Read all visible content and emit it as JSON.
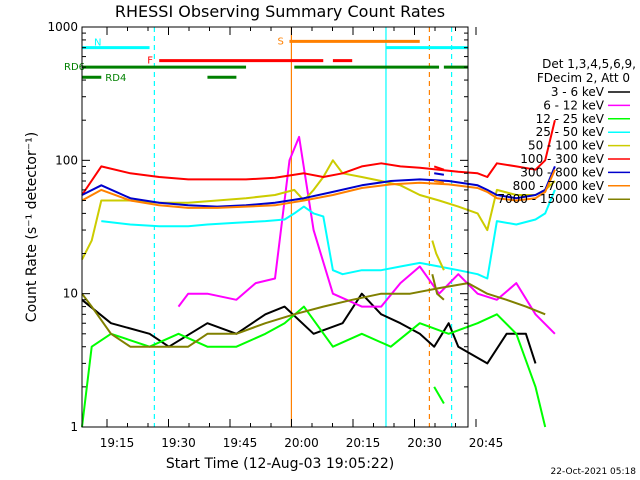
{
  "chart_data": {
    "type": "line",
    "title": "RHESSI Observing Summary Count Rates",
    "xlabel": "Start Time (12-Aug-03 19:05:22)",
    "ylabel": "Count Rate (s⁻¹ detector⁻¹)",
    "y_scale": "log",
    "ylim": [
      1,
      1000
    ],
    "xlim_minutes": [
      7,
      47
    ],
    "x_ticks": [
      "19:15",
      "19:30",
      "19:45",
      "20:00",
      "20:15",
      "20:30",
      "20:45"
    ],
    "y_ticks": [
      "1",
      "10",
      "100",
      "1000"
    ],
    "legend_header": [
      "Det 1,3,4,5,6,9,",
      "FDecim 2, Att 0"
    ],
    "legend_position": "right",
    "timestamp": "22-Oct-2021 05:18",
    "series": [
      {
        "name": "3 - 6 keV",
        "color": "#000000",
        "points": [
          [
            7,
            9
          ],
          [
            10,
            6
          ],
          [
            14,
            5
          ],
          [
            16,
            4
          ],
          [
            20,
            6
          ],
          [
            23,
            5
          ],
          [
            26,
            7
          ],
          [
            28,
            8
          ],
          [
            31,
            5
          ],
          [
            34,
            6
          ],
          [
            36,
            10
          ],
          [
            38,
            7
          ],
          [
            40,
            6
          ],
          [
            42,
            5
          ],
          [
            43.5,
            4
          ],
          [
            45,
            6
          ],
          [
            46,
            4
          ],
          [
            49,
            3
          ],
          [
            51,
            5
          ],
          [
            53,
            5
          ],
          [
            54,
            3
          ]
        ]
      },
      {
        "name": "6 - 12 keV",
        "color": "#ff00ff",
        "points": [
          [
            17,
            8
          ],
          [
            18,
            10
          ],
          [
            20,
            10
          ],
          [
            23,
            9
          ],
          [
            25,
            12
          ],
          [
            27,
            13
          ],
          [
            28.5,
            100
          ],
          [
            29.5,
            150
          ],
          [
            31,
            30
          ],
          [
            33,
            10
          ],
          [
            36,
            8
          ],
          [
            38,
            8
          ],
          [
            40,
            12
          ],
          [
            42,
            16
          ],
          [
            44,
            10
          ],
          [
            46,
            14
          ],
          [
            48,
            10
          ],
          [
            50,
            9
          ],
          [
            52,
            12
          ],
          [
            54,
            7
          ],
          [
            56,
            5
          ]
        ]
      },
      {
        "name": "12 - 25 keV",
        "color": "#00ff00",
        "points": [
          [
            7,
            1
          ],
          [
            8,
            4
          ],
          [
            10,
            5
          ],
          [
            14,
            4
          ],
          [
            17,
            5
          ],
          [
            20,
            4
          ],
          [
            23,
            4
          ],
          [
            26,
            5
          ],
          [
            28,
            6
          ],
          [
            30,
            8
          ],
          [
            33,
            4
          ],
          [
            36,
            5
          ],
          [
            39,
            4
          ],
          [
            42,
            6
          ],
          [
            45,
            5
          ],
          [
            48,
            6
          ],
          [
            50,
            7
          ],
          [
            52,
            5
          ],
          [
            54,
            2
          ],
          [
            55,
            1
          ]
        ]
      },
      {
        "name": "25 - 50 keV",
        "color": "#00ffff",
        "points": [
          [
            9,
            35
          ],
          [
            12,
            33
          ],
          [
            15,
            32
          ],
          [
            18,
            32
          ],
          [
            20,
            33
          ],
          [
            23,
            34
          ],
          [
            26,
            35
          ],
          [
            28,
            36
          ],
          [
            29,
            40
          ],
          [
            30,
            45
          ],
          [
            31,
            40
          ],
          [
            32,
            38
          ],
          [
            33,
            15
          ],
          [
            34,
            14
          ],
          [
            36,
            15
          ],
          [
            38,
            15
          ],
          [
            40,
            16
          ],
          [
            42,
            17
          ],
          [
            44,
            16
          ],
          [
            46,
            15
          ],
          [
            48,
            14
          ],
          [
            49,
            13
          ],
          [
            50,
            35
          ],
          [
            52,
            33
          ],
          [
            54,
            36
          ],
          [
            55,
            40
          ],
          [
            56,
            60
          ]
        ]
      },
      {
        "name": "50 - 100 keV",
        "color": "#cccc00",
        "points": [
          [
            7,
            18
          ],
          [
            8,
            25
          ],
          [
            9,
            50
          ],
          [
            12,
            50
          ],
          [
            15,
            48
          ],
          [
            18,
            48
          ],
          [
            21,
            50
          ],
          [
            24,
            52
          ],
          [
            27,
            55
          ],
          [
            29,
            60
          ],
          [
            30,
            50
          ],
          [
            31,
            60
          ],
          [
            32,
            75
          ],
          [
            33,
            100
          ],
          [
            34,
            80
          ],
          [
            36,
            75
          ],
          [
            38,
            70
          ],
          [
            40,
            65
          ],
          [
            42,
            55
          ],
          [
            44,
            50
          ],
          [
            46,
            45
          ],
          [
            48,
            40
          ],
          [
            49,
            30
          ],
          [
            50,
            60
          ],
          [
            52,
            55
          ],
          [
            54,
            55
          ],
          [
            55,
            60
          ],
          [
            56,
            70
          ]
        ]
      },
      {
        "name": "100 - 300 keV",
        "color": "#ff0000",
        "points": [
          [
            7,
            55
          ],
          [
            9,
            90
          ],
          [
            12,
            80
          ],
          [
            15,
            75
          ],
          [
            18,
            72
          ],
          [
            21,
            72
          ],
          [
            24,
            72
          ],
          [
            27,
            74
          ],
          [
            30,
            80
          ],
          [
            32,
            75
          ],
          [
            34,
            80
          ],
          [
            36,
            90
          ],
          [
            38,
            95
          ],
          [
            40,
            90
          ],
          [
            42,
            88
          ],
          [
            44,
            85
          ],
          [
            46,
            82
          ],
          [
            48,
            80
          ],
          [
            49,
            75
          ],
          [
            50,
            95
          ],
          [
            52,
            90
          ],
          [
            54,
            85
          ],
          [
            55,
            100
          ],
          [
            56,
            200
          ]
        ]
      },
      {
        "name": "300 - 800 keV",
        "color": "#0000cc",
        "points": [
          [
            7,
            55
          ],
          [
            9,
            65
          ],
          [
            12,
            52
          ],
          [
            15,
            48
          ],
          [
            18,
            46
          ],
          [
            21,
            45
          ],
          [
            24,
            46
          ],
          [
            27,
            48
          ],
          [
            30,
            52
          ],
          [
            33,
            58
          ],
          [
            36,
            65
          ],
          [
            39,
            70
          ],
          [
            42,
            72
          ],
          [
            45,
            70
          ],
          [
            48,
            65
          ],
          [
            49,
            60
          ],
          [
            50,
            55
          ],
          [
            52,
            52
          ],
          [
            54,
            55
          ],
          [
            55,
            60
          ],
          [
            56,
            90
          ]
        ]
      },
      {
        "name": "800 - 7000 keV",
        "color": "#ff8000",
        "points": [
          [
            7,
            50
          ],
          [
            9,
            60
          ],
          [
            12,
            50
          ],
          [
            15,
            46
          ],
          [
            18,
            44
          ],
          [
            21,
            44
          ],
          [
            24,
            45
          ],
          [
            27,
            46
          ],
          [
            30,
            50
          ],
          [
            33,
            55
          ],
          [
            36,
            62
          ],
          [
            39,
            66
          ],
          [
            42,
            68
          ],
          [
            45,
            66
          ],
          [
            48,
            62
          ],
          [
            49,
            58
          ],
          [
            50,
            52
          ],
          [
            52,
            50
          ],
          [
            54,
            52
          ],
          [
            55,
            58
          ],
          [
            56,
            85
          ]
        ]
      },
      {
        "name": "7000 - 15000 keV",
        "color": "#808000",
        "points": [
          [
            7,
            10
          ],
          [
            8,
            8
          ],
          [
            10,
            5
          ],
          [
            12,
            4
          ],
          [
            15,
            4
          ],
          [
            18,
            4
          ],
          [
            20,
            5
          ],
          [
            23,
            5
          ],
          [
            26,
            6
          ],
          [
            29,
            7
          ],
          [
            32,
            8
          ],
          [
            35,
            9
          ],
          [
            38,
            10
          ],
          [
            41,
            10
          ],
          [
            44,
            11
          ],
          [
            47,
            12
          ],
          [
            49,
            10
          ],
          [
            51,
            9
          ],
          [
            53,
            8
          ],
          [
            55,
            7
          ]
        ]
      }
    ],
    "after_gap_series": [
      {
        "color": "#ff0000",
        "points": [
          [
            43.5,
            90
          ],
          [
            44.5,
            85
          ]
        ]
      },
      {
        "color": "#0000cc",
        "points": [
          [
            43.5,
            80
          ],
          [
            44.5,
            78
          ]
        ]
      },
      {
        "color": "#ff8000",
        "points": [
          [
            43.5,
            70
          ],
          [
            44.5,
            68
          ]
        ]
      },
      {
        "color": "#cccc00",
        "points": [
          [
            43.3,
            25
          ],
          [
            43.7,
            20
          ],
          [
            44.5,
            15
          ]
        ]
      },
      {
        "color": "#808000",
        "points": [
          [
            43.3,
            14
          ],
          [
            43.8,
            10
          ],
          [
            44.5,
            9
          ]
        ]
      },
      {
        "color": "#00ff00",
        "points": [
          [
            43.5,
            2
          ],
          [
            44.5,
            1.5
          ]
        ]
      }
    ],
    "flag_bars": [
      {
        "label": "N",
        "color": "#00ffff",
        "level": 700,
        "ranges": [
          [
            7,
            14
          ],
          [
            38.5,
            47
          ]
        ]
      },
      {
        "label": "F",
        "color": "#ff0000",
        "level": 560,
        "ranges": [
          [
            15,
            32
          ],
          [
            33,
            35
          ]
        ]
      },
      {
        "label": "S",
        "color": "#ff8000",
        "level": 780,
        "ranges": [
          [
            28.5,
            42
          ]
        ]
      },
      {
        "label": "RD6",
        "color": "#008000",
        "level": 500,
        "ranges": [
          [
            7,
            24
          ],
          [
            29,
            44
          ],
          [
            44.5,
            47
          ]
        ]
      },
      {
        "label": "RD4",
        "color": "#008000",
        "level": 420,
        "ranges": [
          [
            7,
            9
          ],
          [
            20,
            23
          ]
        ]
      }
    ],
    "vertical_markers": [
      {
        "x": 14.5,
        "color": "#00ffff",
        "style": "dashed"
      },
      {
        "x": 28.7,
        "color": "#ff8000",
        "style": "solid"
      },
      {
        "x": 38.5,
        "color": "#00ffff",
        "style": "solid"
      },
      {
        "x": 43,
        "color": "#ff8000",
        "style": "dashed"
      },
      {
        "x": 45.3,
        "color": "#00ffff",
        "style": "dashed"
      }
    ]
  }
}
